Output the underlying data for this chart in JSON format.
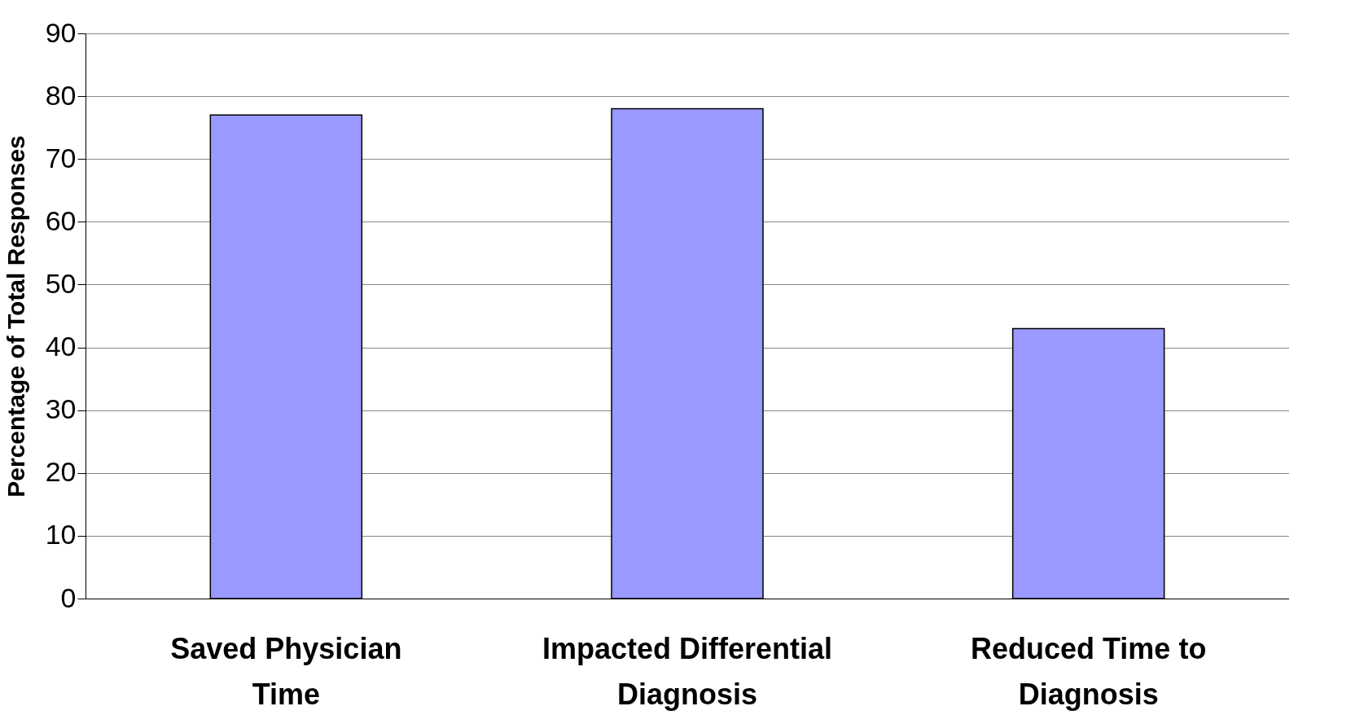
{
  "chart_data": {
    "type": "bar",
    "ylabel": "Percentage of Total Responses",
    "categories": [
      "Saved Physician Time",
      "Impacted Differential Diagnosis",
      "Reduced Time to Diagnosis"
    ],
    "values": [
      77,
      78,
      43
    ],
    "color": "#9999ff",
    "ylim": [
      0,
      90
    ],
    "yticks": [
      0,
      10,
      20,
      30,
      40,
      50,
      60,
      70,
      80,
      90
    ],
    "grid": "y"
  }
}
